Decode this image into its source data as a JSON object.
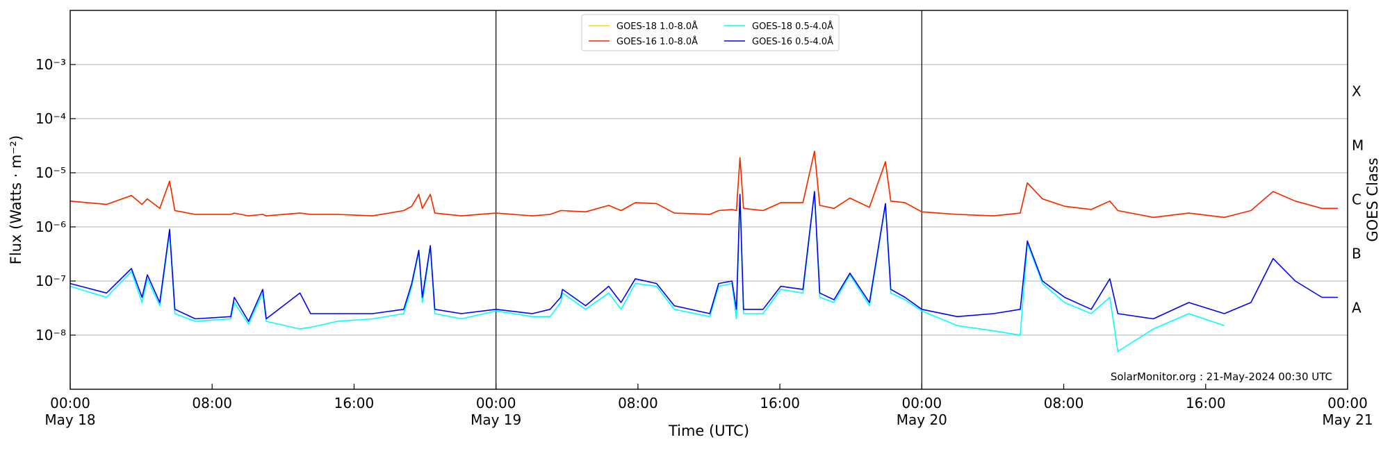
{
  "chart_data": {
    "type": "line",
    "xlabel": "Time (UTC)",
    "ylabel": "Flux (Watts · m⁻²)",
    "y2label": "GOES Class",
    "annotation": "SolarMonitor.org : 21-May-2024 00:30 UTC",
    "ylog": true,
    "grid": true,
    "legend": "upper center",
    "xlim": [
      0,
      72
    ],
    "xticks": [
      {
        "value": 0,
        "label": "00:00\nMay 18"
      },
      {
        "value": 8,
        "label": "08:00"
      },
      {
        "value": 16,
        "label": "16:00"
      },
      {
        "value": 24,
        "label": "00:00\nMay 19"
      },
      {
        "value": 32,
        "label": "08:00"
      },
      {
        "value": 40,
        "label": "16:00"
      },
      {
        "value": 48,
        "label": "00:00\nMay 20"
      },
      {
        "value": 56,
        "label": "08:00"
      },
      {
        "value": 64,
        "label": "16:00"
      },
      {
        "value": 72,
        "label": "00:00\nMay 21"
      }
    ],
    "vlines": [
      24,
      48
    ],
    "ylim": [
      1e-09,
      0.01
    ],
    "yticks": [
      {
        "value": 1e-08,
        "label": "10⁻⁸"
      },
      {
        "value": 1e-07,
        "label": "10⁻⁷"
      },
      {
        "value": 1e-06,
        "label": "10⁻⁶"
      },
      {
        "value": 1e-05,
        "label": "10⁻⁵"
      },
      {
        "value": 0.0001,
        "label": "10⁻⁴"
      },
      {
        "value": 0.001,
        "label": "10⁻³"
      }
    ],
    "y2lim": [
      1e-09,
      0.01
    ],
    "y2ticks": [
      {
        "value": 3.2e-08,
        "label": "A"
      },
      {
        "value": 3.2e-07,
        "label": "B"
      },
      {
        "value": 3.2e-06,
        "label": "C"
      },
      {
        "value": 3.2e-05,
        "label": "M"
      },
      {
        "value": 0.00032,
        "label": "X"
      }
    ],
    "x": [
      0,
      2.05,
      3.45,
      4.05,
      4.35,
      5.05,
      5.6,
      5.9,
      7.05,
      9.05,
      9.25,
      10.05,
      10.85,
      11.05,
      12.95,
      13.55,
      15.05,
      17.05,
      18.8,
      19.25,
      19.65,
      19.85,
      20.3,
      20.55,
      22.05,
      24,
      26.05,
      27.05,
      27.65,
      27.75,
      29.05,
      30.35,
      31.05,
      31.85,
      33.05,
      34.05,
      36.05,
      36.55,
      37.3,
      37.55,
      37.75,
      37.95,
      39.05,
      40.05,
      41.3,
      41.95,
      42.25,
      43.05,
      43.95,
      45.05,
      45.95,
      46.25,
      47.05,
      48,
      50,
      52.05,
      53.55,
      53.95,
      54.8,
      56.05,
      57.55,
      58.6,
      59.05,
      61.05,
      63.05,
      65.05,
      66.55,
      67.8,
      69.05,
      70.55,
      71.45
    ],
    "series": [
      {
        "name": "GOES-18 1.0-8.0Å",
        "color": "#ffd700",
        "values": [
          3e-06,
          2.6e-06,
          3.8e-06,
          2.6e-06,
          3.3e-06,
          2.2e-06,
          7e-06,
          2e-06,
          1.7e-06,
          1.7e-06,
          1.8e-06,
          1.6e-06,
          1.7e-06,
          1.6e-06,
          1.8e-06,
          1.7e-06,
          1.7e-06,
          1.6e-06,
          2e-06,
          2.4e-06,
          4e-06,
          2.2e-06,
          4e-06,
          1.8e-06,
          1.6e-06,
          1.8e-06,
          1.6e-06,
          1.7e-06,
          2e-06,
          2e-06,
          1.9e-06,
          2.5e-06,
          2e-06,
          2.8e-06,
          2.7e-06,
          1.8e-06,
          1.7e-06,
          2e-06,
          2.1e-06,
          2e-06,
          1.9e-05,
          2.2e-06,
          2e-06,
          2.8e-06,
          2.8e-06,
          2.5e-05,
          2.5e-06,
          2.2e-06,
          3.4e-06,
          2.3e-06,
          1.6e-05,
          3e-06,
          2.8e-06,
          1.9e-06,
          1.7e-06,
          1.6e-06,
          1.8e-06,
          6.5e-06,
          3.3e-06,
          2.4e-06,
          2.1e-06,
          3e-06,
          2e-06,
          1.5e-06,
          1.8e-06,
          1.5e-06,
          null,
          null,
          null,
          null,
          null
        ]
      },
      {
        "name": "GOES-16 1.0-8.0Å",
        "color": "#ff2200",
        "values": [
          3e-06,
          2.6e-06,
          3.8e-06,
          2.6e-06,
          3.3e-06,
          2.2e-06,
          7e-06,
          2e-06,
          1.7e-06,
          1.7e-06,
          1.8e-06,
          1.6e-06,
          1.7e-06,
          1.6e-06,
          1.8e-06,
          1.7e-06,
          1.7e-06,
          1.6e-06,
          2e-06,
          2.4e-06,
          4e-06,
          2.2e-06,
          4e-06,
          1.8e-06,
          1.6e-06,
          1.8e-06,
          1.6e-06,
          1.7e-06,
          2e-06,
          2e-06,
          1.9e-06,
          2.5e-06,
          2e-06,
          2.8e-06,
          2.7e-06,
          1.8e-06,
          1.7e-06,
          2e-06,
          2.1e-06,
          2e-06,
          1.9e-05,
          2.2e-06,
          2e-06,
          2.8e-06,
          2.8e-06,
          2.5e-05,
          2.5e-06,
          2.2e-06,
          3.4e-06,
          2.3e-06,
          1.6e-05,
          3e-06,
          2.8e-06,
          1.9e-06,
          1.7e-06,
          1.6e-06,
          1.8e-06,
          6.5e-06,
          3.3e-06,
          2.4e-06,
          2.1e-06,
          3e-06,
          2e-06,
          1.5e-06,
          1.8e-06,
          1.5e-06,
          2e-06,
          4.5e-06,
          3e-06,
          2.2e-06,
          2.2e-06
        ]
      },
      {
        "name": "GOES-18 0.5-4.0Å",
        "color": "#00ffff",
        "values": [
          8e-08,
          5e-08,
          1.5e-07,
          4e-08,
          1.1e-07,
          3.5e-08,
          8e-07,
          2.5e-08,
          1.8e-08,
          2e-08,
          4e-08,
          1.6e-08,
          6e-08,
          1.8e-08,
          1.3e-08,
          1.4e-08,
          1.8e-08,
          2e-08,
          2.5e-08,
          8e-08,
          3.5e-07,
          4e-08,
          4.2e-07,
          2.5e-08,
          2e-08,
          2.8e-08,
          2.2e-08,
          2.2e-08,
          4e-08,
          6e-08,
          3e-08,
          6e-08,
          3e-08,
          9e-08,
          8e-08,
          3e-08,
          2.2e-08,
          8e-08,
          9e-08,
          2e-08,
          3.8e-06,
          2.5e-08,
          2.5e-08,
          7e-08,
          6e-08,
          4.3e-06,
          5e-08,
          4e-08,
          1.3e-07,
          3.5e-08,
          2.6e-06,
          6e-08,
          4.5e-08,
          2.8e-08,
          1.5e-08,
          1.2e-08,
          1e-08,
          5e-07,
          9e-08,
          4e-08,
          2.5e-08,
          5e-08,
          5e-09,
          1.3e-08,
          2.5e-08,
          1.5e-08,
          null,
          null,
          null,
          null,
          null
        ]
      },
      {
        "name": "GOES-16 0.5-4.0Å",
        "color": "#0000ff",
        "values": [
          9e-08,
          6e-08,
          1.7e-07,
          5e-08,
          1.3e-07,
          4e-08,
          9e-07,
          3e-08,
          2e-08,
          2.2e-08,
          5e-08,
          1.8e-08,
          7e-08,
          2e-08,
          6e-08,
          2.5e-08,
          2.5e-08,
          2.5e-08,
          3e-08,
          9e-08,
          3.7e-07,
          5e-08,
          4.5e-07,
          3e-08,
          2.5e-08,
          3e-08,
          2.5e-08,
          3e-08,
          5e-08,
          7e-08,
          3.5e-08,
          8e-08,
          4e-08,
          1.1e-07,
          9e-08,
          3.5e-08,
          2.5e-08,
          9e-08,
          1e-07,
          3e-08,
          4e-06,
          3e-08,
          3e-08,
          8e-08,
          7e-08,
          4.5e-06,
          6e-08,
          4.5e-08,
          1.4e-07,
          4e-08,
          2.7e-06,
          7e-08,
          5e-08,
          3e-08,
          2.2e-08,
          2.5e-08,
          3e-08,
          5.5e-07,
          1e-07,
          5e-08,
          3e-08,
          1.1e-07,
          2.5e-08,
          2e-08,
          4e-08,
          2.5e-08,
          4e-08,
          2.6e-07,
          1e-07,
          5e-08,
          5e-08
        ]
      }
    ]
  }
}
